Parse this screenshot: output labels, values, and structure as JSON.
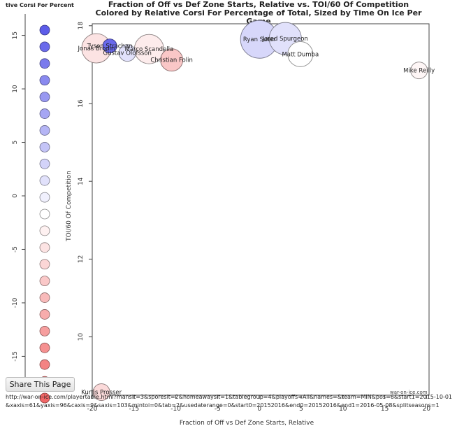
{
  "legend": {
    "title": "tive Corsi For Percent",
    "ticks": [
      "15",
      "10",
      "5",
      "0",
      "-5",
      "-10",
      "-15"
    ],
    "tick_values": [
      15,
      10,
      5,
      0,
      -5,
      -10,
      -15
    ],
    "range": [
      -17,
      17
    ],
    "n_circles": 23,
    "color_low": "#f06060",
    "color_mid": "#ffffff",
    "color_high": "#5555e8"
  },
  "chart_data": {
    "type": "scatter",
    "title_line1": "Fraction of Off vs Def Zone Starts, Relative vs. TOI/60 Of Competition",
    "title_line2": "Colored by Relative Corsi For Percentage of Total, Sized by Time On Ice Per Game",
    "xlabel": "Fraction of Off vs Def Zone Starts, Relative",
    "ylabel": "TOI/60 Of Competition",
    "xlim": [
      -20,
      20.3
    ],
    "ylim": [
      8.5,
      18.05
    ],
    "x_ticks": [
      "-20",
      "-15",
      "-10",
      "-5",
      "0",
      "5",
      "10",
      "15",
      "20"
    ],
    "x_tick_values": [
      -20,
      -15,
      -10,
      -5,
      0,
      5,
      10,
      15,
      20
    ],
    "y_ticks": [
      "10",
      "12",
      "14",
      "16",
      "18"
    ],
    "y_tick_values": [
      10,
      12,
      14,
      16,
      18
    ],
    "points": [
      {
        "label": "Tyson Strachan",
        "x": -17.9,
        "y": 17.48,
        "corsi": 15,
        "toi": 10
      },
      {
        "label": "Jonas Brodin",
        "x": -19.5,
        "y": 17.42,
        "corsi": -3,
        "toi": 21
      },
      {
        "label": "Gustav Olofsson",
        "x": -15.8,
        "y": 17.3,
        "corsi": 3,
        "toi": 12
      },
      {
        "label": "Marco Scandella",
        "x": -13.2,
        "y": 17.4,
        "corsi": -2,
        "toi": 21
      },
      {
        "label": "Christian Folin",
        "x": -10.5,
        "y": 17.12,
        "corsi": -6,
        "toi": 16
      },
      {
        "label": "Ryan Suter",
        "x": 0,
        "y": 17.65,
        "corsi": 4,
        "toi": 27
      },
      {
        "label": "Jared Spurgeon",
        "x": 3.1,
        "y": 17.67,
        "corsi": 3,
        "toi": 23
      },
      {
        "label": "Matt Dumba",
        "x": 4.9,
        "y": 17.27,
        "corsi": 0,
        "toi": 18
      },
      {
        "label": "Mike Reilly",
        "x": 19.1,
        "y": 16.85,
        "corsi": -1,
        "toi": 12
      },
      {
        "label": "Kurtis Prosser",
        "x": -18.9,
        "y": 8.58,
        "corsi": -4,
        "toi": 12
      }
    ]
  },
  "share_button": "Share This Page",
  "url": "http://war-on-ice.com/playertable.html?mansit=3&sporesit=2&homeawaysit=1&tablegroup=4&playoffs=All&names=&team=MIN&pos=6&start1=2015-10-01&xaxis=61&yaxis=96&caxis=9&saxis=103&mintoi=0&tab=2&usedaterange=0&start0=20152016&end0=20152016&end1=2016-05-08&splitseasons=1",
  "watermark": "war-on-ice.com"
}
